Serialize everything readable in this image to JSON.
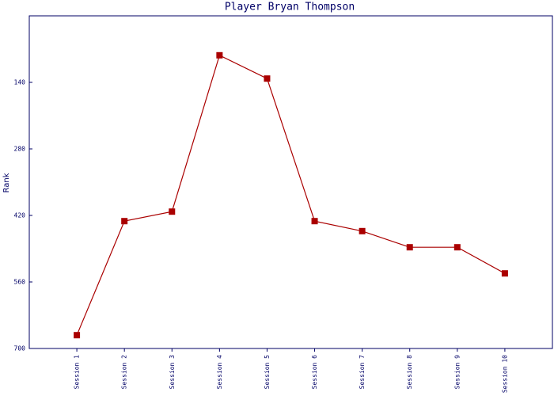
{
  "chart_data": {
    "type": "line",
    "title": "Player Bryan Thompson",
    "y_label": "Rank",
    "categories": [
      "Session 1",
      "Session 2",
      "Session 3",
      "Session 4",
      "Session 5",
      "Session 6",
      "Session 7",
      "Session 8",
      "Session 9",
      "Session 10"
    ],
    "series": [
      {
        "color": "#aa0000",
        "values": [
          672,
          432,
          412,
          83,
          132,
          432,
          453,
          487,
          487,
          542
        ]
      }
    ],
    "ylim": [
      0,
      700
    ],
    "yticks": [
      140,
      280,
      420,
      560,
      700
    ],
    "y_inverted": true,
    "marker": "square"
  }
}
